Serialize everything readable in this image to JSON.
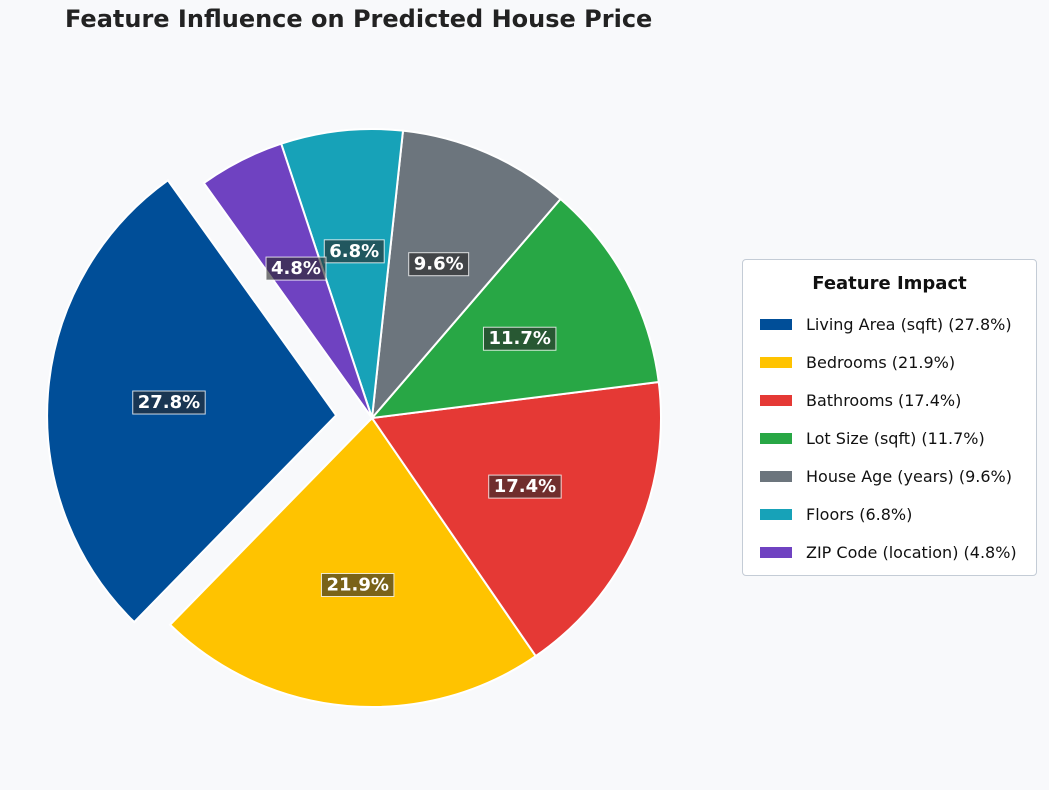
{
  "chart_data": {
    "type": "pie",
    "title": "Feature Influence on Predicted House Price",
    "legend": {
      "title": "Feature Impact",
      "placement": "right"
    },
    "slices": [
      {
        "label": "Living Area (sqft)",
        "value": 27.8,
        "pct_label": "27.8%",
        "legend_label": "Living Area (sqft) (27.8%)",
        "color": "#004e98",
        "exploded": true
      },
      {
        "label": "Bedrooms",
        "value": 21.9,
        "pct_label": "21.9%",
        "legend_label": "Bedrooms (21.9%)",
        "color": "#ffc300",
        "exploded": false
      },
      {
        "label": "Bathrooms",
        "value": 17.4,
        "pct_label": "17.4%",
        "legend_label": "Bathrooms (17.4%)",
        "color": "#e53935",
        "exploded": false
      },
      {
        "label": "Lot Size (sqft)",
        "value": 11.7,
        "pct_label": "11.7%",
        "legend_label": "Lot Size (sqft) (11.7%)",
        "color": "#28a745",
        "exploded": false
      },
      {
        "label": "House Age (years)",
        "value": 9.6,
        "pct_label": "9.6%",
        "legend_label": "House Age (years) (9.6%)",
        "color": "#6c757d",
        "exploded": false
      },
      {
        "label": "Floors",
        "value": 6.8,
        "pct_label": "6.8%",
        "legend_label": "Floors (6.8%)",
        "color": "#17a2b8",
        "exploded": false
      },
      {
        "label": "ZIP Code (location)",
        "value": 4.8,
        "pct_label": "4.8%",
        "legend_label": "ZIP Code (location) (4.8%)",
        "color": "#6f42c1",
        "exploded": false
      }
    ]
  }
}
